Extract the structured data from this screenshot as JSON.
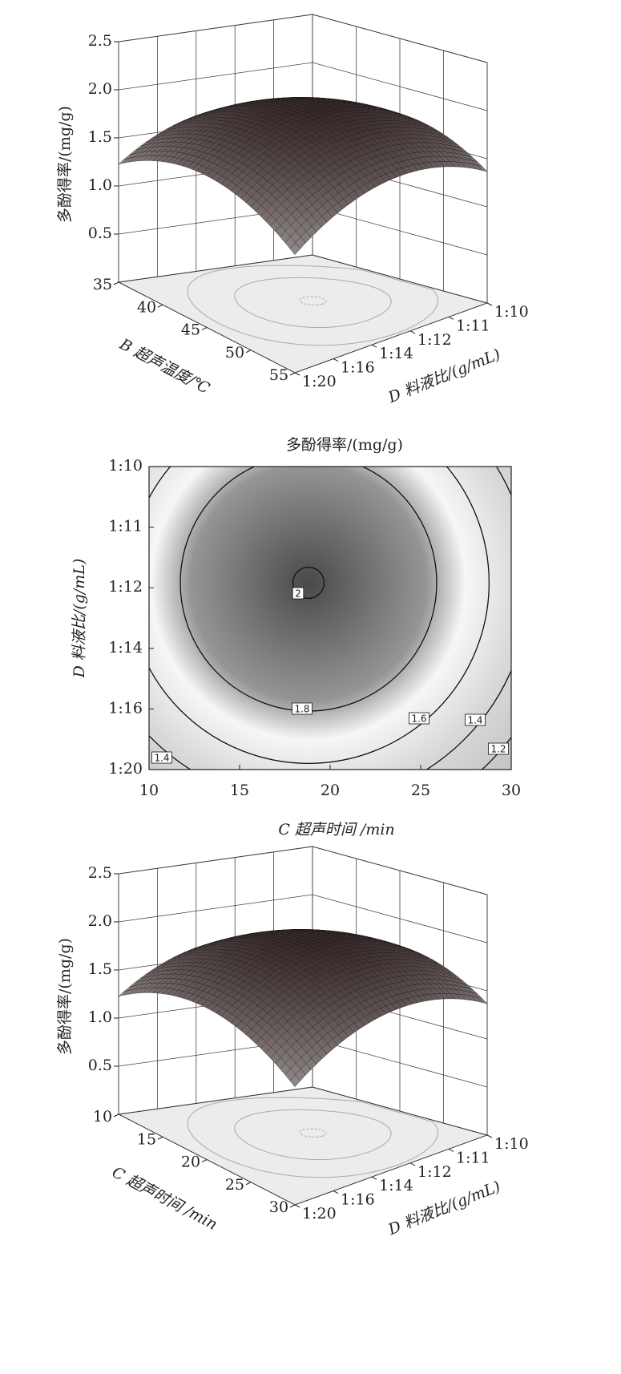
{
  "chart_data": [
    {
      "type": "surface3d",
      "zlabel": "多酚得率/(mg/g)",
      "zlim": [
        0,
        2.5
      ],
      "zticks": [
        0.5,
        {
          "value": 1,
          "label": "1.0"
        },
        1.5,
        {
          "value": 2,
          "label": "2.0"
        },
        2.5
      ],
      "xlabel": "B 超声温度/℃",
      "xlim": [
        35,
        55
      ],
      "xticks": [
        35,
        40,
        45,
        50,
        55
      ],
      "ylabel": "D 料液比/(g/mL)",
      "ycategories": [
        "1:20",
        "1:16",
        "1:14",
        "1:12",
        "1:11",
        "1:10"
      ]
    },
    {
      "type": "contour",
      "title": "多酚得率/(mg/g)",
      "xlabel": "C 超声时间 /min",
      "xlim": [
        10,
        30
      ],
      "xticks": [
        10,
        15,
        20,
        25,
        30
      ],
      "ylabel": "D 料液比/(g/mL)",
      "ycategories": [
        "1:10",
        "1:11",
        "1:12",
        "1:14",
        "1:16",
        "1:20"
      ],
      "levels": [
        2,
        1.8,
        1.6,
        1.4,
        1.2
      ]
    },
    {
      "type": "surface3d",
      "zlabel": "多酚得率/(mg/g)",
      "zlim": [
        0,
        2.5
      ],
      "zticks": [
        0.5,
        {
          "value": 1,
          "label": "1.0"
        },
        1.5,
        {
          "value": 2,
          "label": "2.0"
        },
        2.5
      ],
      "xlabel": "C 超声时间 /min",
      "xlim": [
        10,
        30
      ],
      "xticks": [
        10,
        15,
        20,
        25,
        30
      ],
      "ylabel": "D 料液比/(g/mL)",
      "ycategories": [
        "1:20",
        "1:16",
        "1:14",
        "1:12",
        "1:11",
        "1:10"
      ]
    }
  ]
}
